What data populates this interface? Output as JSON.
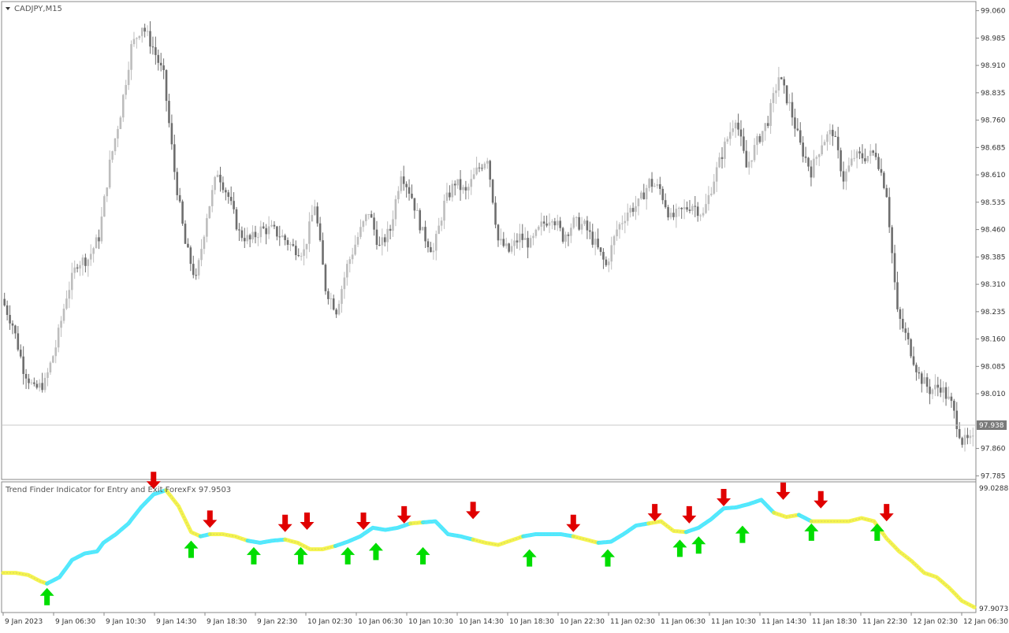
{
  "chart_title": "CADJPY,M15",
  "current_price": "97.938",
  "colors": {
    "bull_wick": "#bdbdbd",
    "bear_candle": "#6e6e6e",
    "uptrend": "#2ee6ff",
    "downtrend": "#f2f230",
    "buy_arrow": "#00dd00",
    "sell_arrow": "#e00000",
    "price_line": "#c8c8c8"
  },
  "chart_data": [
    {
      "type": "candlestick",
      "title": "CADJPY,M15",
      "ylim": [
        97.775,
        99.085
      ],
      "y_ticks": [
        "99.060",
        "98.985",
        "98.910",
        "98.835",
        "98.760",
        "98.685",
        "98.610",
        "98.535",
        "98.460",
        "98.385",
        "98.310",
        "98.235",
        "98.160",
        "98.085",
        "98.010",
        "97.860",
        "97.785"
      ],
      "x_ticks": [
        "9 Jan 2023",
        "9 Jan 06:30",
        "9 Jan 10:30",
        "9 Jan 14:30",
        "9 Jan 18:30",
        "9 Jan 22:30",
        "10 Jan 02:30",
        "10 Jan 06:30",
        "10 Jan 10:30",
        "10 Jan 14:30",
        "10 Jan 18:30",
        "10 Jan 22:30",
        "11 Jan 02:30",
        "11 Jan 06:30",
        "11 Jan 10:30",
        "11 Jan 14:30",
        "11 Jan 18:30",
        "11 Jan 22:30",
        "12 Jan 02:30",
        "12 Jan 06:30"
      ],
      "close_path": [
        [
          0,
          98.27
        ],
        [
          4,
          98.2
        ],
        [
          8,
          98.08
        ],
        [
          12,
          98.02
        ],
        [
          16,
          98.04
        ],
        [
          20,
          98.14
        ],
        [
          24,
          98.28
        ],
        [
          28,
          98.37
        ],
        [
          32,
          98.38
        ],
        [
          36,
          98.44
        ],
        [
          40,
          98.64
        ],
        [
          44,
          98.78
        ],
        [
          48,
          98.96
        ],
        [
          52,
          99.02
        ],
        [
          56,
          98.96
        ],
        [
          60,
          98.88
        ],
        [
          64,
          98.62
        ],
        [
          68,
          98.42
        ],
        [
          72,
          98.32
        ],
        [
          76,
          98.5
        ],
        [
          80,
          98.62
        ],
        [
          84,
          98.55
        ],
        [
          88,
          98.45
        ],
        [
          92,
          98.43
        ],
        [
          96,
          98.46
        ],
        [
          100,
          98.46
        ],
        [
          104,
          98.44
        ],
        [
          108,
          98.41
        ],
        [
          112,
          98.4
        ],
        [
          116,
          98.53
        ],
        [
          120,
          98.3
        ],
        [
          124,
          98.24
        ],
        [
          128,
          98.36
        ],
        [
          132,
          98.44
        ],
        [
          136,
          98.51
        ],
        [
          140,
          98.41
        ],
        [
          144,
          98.46
        ],
        [
          148,
          98.62
        ],
        [
          152,
          98.55
        ],
        [
          156,
          98.45
        ],
        [
          160,
          98.4
        ],
        [
          164,
          98.53
        ],
        [
          168,
          98.59
        ],
        [
          172,
          98.56
        ],
        [
          176,
          98.62
        ],
        [
          180,
          98.66
        ],
        [
          184,
          98.43
        ],
        [
          188,
          98.4
        ],
        [
          192,
          98.44
        ],
        [
          196,
          98.42
        ],
        [
          200,
          98.47
        ],
        [
          204,
          98.5
        ],
        [
          208,
          98.44
        ],
        [
          212,
          98.48
        ],
        [
          216,
          98.47
        ],
        [
          220,
          98.42
        ],
        [
          224,
          98.36
        ],
        [
          228,
          98.46
        ],
        [
          232,
          98.51
        ],
        [
          236,
          98.53
        ],
        [
          240,
          98.59
        ],
        [
          244,
          98.57
        ],
        [
          248,
          98.49
        ],
        [
          252,
          98.51
        ],
        [
          256,
          98.53
        ],
        [
          260,
          98.5
        ],
        [
          264,
          98.6
        ],
        [
          268,
          98.69
        ],
        [
          272,
          98.77
        ],
        [
          276,
          98.63
        ],
        [
          280,
          98.7
        ],
        [
          284,
          98.76
        ],
        [
          288,
          98.88
        ],
        [
          292,
          98.8
        ],
        [
          296,
          98.69
        ],
        [
          300,
          98.62
        ],
        [
          304,
          98.7
        ],
        [
          308,
          98.73
        ],
        [
          312,
          98.6
        ],
        [
          316,
          98.66
        ],
        [
          320,
          98.66
        ],
        [
          324,
          98.67
        ],
        [
          328,
          98.56
        ],
        [
          332,
          98.23
        ],
        [
          336,
          98.15
        ],
        [
          340,
          98.06
        ],
        [
          344,
          98.02
        ],
        [
          348,
          98.03
        ],
        [
          352,
          97.98
        ],
        [
          356,
          97.88
        ]
      ],
      "last_close": 97.938
    },
    {
      "type": "line",
      "title": "Trend Finder Indicator for Entry and Exit ForexFx 97.9503",
      "ylim": [
        97.9073,
        99.0288
      ],
      "y_ticks": [
        "99.0288",
        "97.9073"
      ],
      "series": [
        {
          "name": "trend",
          "points": [
            [
              0,
              98.24
            ],
            [
              4,
              98.24
            ],
            [
              8,
              98.22
            ],
            [
              12,
              98.16
            ],
            [
              14,
              98.14
            ],
            [
              18,
              98.2
            ],
            [
              22,
              98.36
            ],
            [
              26,
              98.42
            ],
            [
              30,
              98.44
            ],
            [
              32,
              98.52
            ],
            [
              36,
              98.6
            ],
            [
              40,
              98.7
            ],
            [
              44,
              98.85
            ],
            [
              48,
              98.97
            ],
            [
              52,
              99.01
            ],
            [
              56,
              98.86
            ],
            [
              60,
              98.62
            ],
            [
              63,
              98.58
            ],
            [
              66,
              98.6
            ],
            [
              70,
              98.6
            ],
            [
              74,
              98.58
            ],
            [
              78,
              98.54
            ],
            [
              82,
              98.52
            ],
            [
              86,
              98.54
            ],
            [
              90,
              98.55
            ],
            [
              94,
              98.52
            ],
            [
              98,
              98.46
            ],
            [
              102,
              98.46
            ],
            [
              106,
              98.49
            ],
            [
              110,
              98.53
            ],
            [
              114,
              98.58
            ],
            [
              118,
              98.66
            ],
            [
              122,
              98.64
            ],
            [
              126,
              98.66
            ],
            [
              130,
              98.7
            ],
            [
              134,
              98.71
            ],
            [
              138,
              98.72
            ],
            [
              142,
              98.6
            ],
            [
              146,
              98.58
            ],
            [
              150,
              98.55
            ],
            [
              154,
              98.52
            ],
            [
              158,
              98.5
            ],
            [
              162,
              98.54
            ],
            [
              166,
              98.58
            ],
            [
              170,
              98.6
            ],
            [
              174,
              98.6
            ],
            [
              178,
              98.6
            ],
            [
              182,
              98.58
            ],
            [
              186,
              98.55
            ],
            [
              190,
              98.52
            ],
            [
              194,
              98.53
            ],
            [
              198,
              98.6
            ],
            [
              202,
              98.68
            ],
            [
              206,
              98.7
            ],
            [
              210,
              98.72
            ],
            [
              214,
              98.63
            ],
            [
              218,
              98.62
            ],
            [
              222,
              98.66
            ],
            [
              226,
              98.74
            ],
            [
              230,
              98.84
            ],
            [
              234,
              98.85
            ],
            [
              238,
              98.88
            ],
            [
              242,
              98.92
            ],
            [
              246,
              98.8
            ],
            [
              250,
              98.76
            ],
            [
              254,
              98.78
            ],
            [
              258,
              98.72
            ],
            [
              262,
              98.72
            ],
            [
              266,
              98.72
            ],
            [
              270,
              98.72
            ],
            [
              274,
              98.75
            ],
            [
              278,
              98.72
            ],
            [
              282,
              98.56
            ],
            [
              286,
              98.44
            ],
            [
              290,
              98.35
            ],
            [
              294,
              98.24
            ],
            [
              298,
              98.2
            ],
            [
              302,
              98.1
            ],
            [
              306,
              97.98
            ],
            [
              310,
              97.92
            ]
          ],
          "segments": [
            {
              "from": 0,
              "to": 14,
              "trend": "down"
            },
            {
              "from": 14,
              "to": 52,
              "trend": "up"
            },
            {
              "from": 52,
              "to": 63,
              "trend": "down"
            },
            {
              "from": 63,
              "to": 66,
              "trend": "up"
            },
            {
              "from": 66,
              "to": 78,
              "trend": "down"
            },
            {
              "from": 78,
              "to": 90,
              "trend": "up"
            },
            {
              "from": 90,
              "to": 106,
              "trend": "down"
            },
            {
              "from": 106,
              "to": 130,
              "trend": "up"
            },
            {
              "from": 130,
              "to": 134,
              "trend": "down"
            },
            {
              "from": 134,
              "to": 150,
              "trend": "up"
            },
            {
              "from": 150,
              "to": 166,
              "trend": "down"
            },
            {
              "from": 166,
              "to": 182,
              "trend": "up"
            },
            {
              "from": 182,
              "to": 190,
              "trend": "down"
            },
            {
              "from": 190,
              "to": 206,
              "trend": "up"
            },
            {
              "from": 206,
              "to": 218,
              "trend": "down"
            },
            {
              "from": 218,
              "to": 246,
              "trend": "up"
            },
            {
              "from": 246,
              "to": 254,
              "trend": "down"
            },
            {
              "from": 254,
              "to": 258,
              "trend": "up"
            },
            {
              "from": 258,
              "to": 310,
              "trend": "down"
            }
          ]
        }
      ],
      "signals": [
        {
          "t": 14,
          "value": 98.1,
          "type": "buy"
        },
        {
          "t": 48,
          "value": 99.02,
          "type": "sell"
        },
        {
          "t": 60,
          "value": 98.54,
          "type": "buy"
        },
        {
          "t": 66,
          "value": 98.66,
          "type": "sell"
        },
        {
          "t": 80,
          "value": 98.48,
          "type": "buy"
        },
        {
          "t": 90,
          "value": 98.62,
          "type": "sell"
        },
        {
          "t": 95,
          "value": 98.48,
          "type": "buy"
        },
        {
          "t": 97,
          "value": 98.64,
          "type": "sell"
        },
        {
          "t": 110,
          "value": 98.48,
          "type": "buy"
        },
        {
          "t": 115,
          "value": 98.64,
          "type": "sell"
        },
        {
          "t": 119,
          "value": 98.52,
          "type": "buy"
        },
        {
          "t": 128,
          "value": 98.7,
          "type": "sell"
        },
        {
          "t": 134,
          "value": 98.48,
          "type": "buy"
        },
        {
          "t": 150,
          "value": 98.74,
          "type": "sell"
        },
        {
          "t": 168,
          "value": 98.46,
          "type": "buy"
        },
        {
          "t": 182,
          "value": 98.62,
          "type": "sell"
        },
        {
          "t": 193,
          "value": 98.46,
          "type": "buy"
        },
        {
          "t": 208,
          "value": 98.72,
          "type": "sell"
        },
        {
          "t": 216,
          "value": 98.55,
          "type": "buy"
        },
        {
          "t": 219,
          "value": 98.7,
          "type": "sell"
        },
        {
          "t": 222,
          "value": 98.58,
          "type": "buy"
        },
        {
          "t": 230,
          "value": 98.86,
          "type": "sell"
        },
        {
          "t": 236,
          "value": 98.68,
          "type": "buy"
        },
        {
          "t": 249,
          "value": 98.92,
          "type": "sell"
        },
        {
          "t": 258,
          "value": 98.7,
          "type": "buy"
        },
        {
          "t": 261,
          "value": 98.84,
          "type": "sell"
        },
        {
          "t": 279,
          "value": 98.7,
          "type": "buy"
        },
        {
          "t": 282,
          "value": 98.72,
          "type": "sell"
        }
      ]
    }
  ]
}
